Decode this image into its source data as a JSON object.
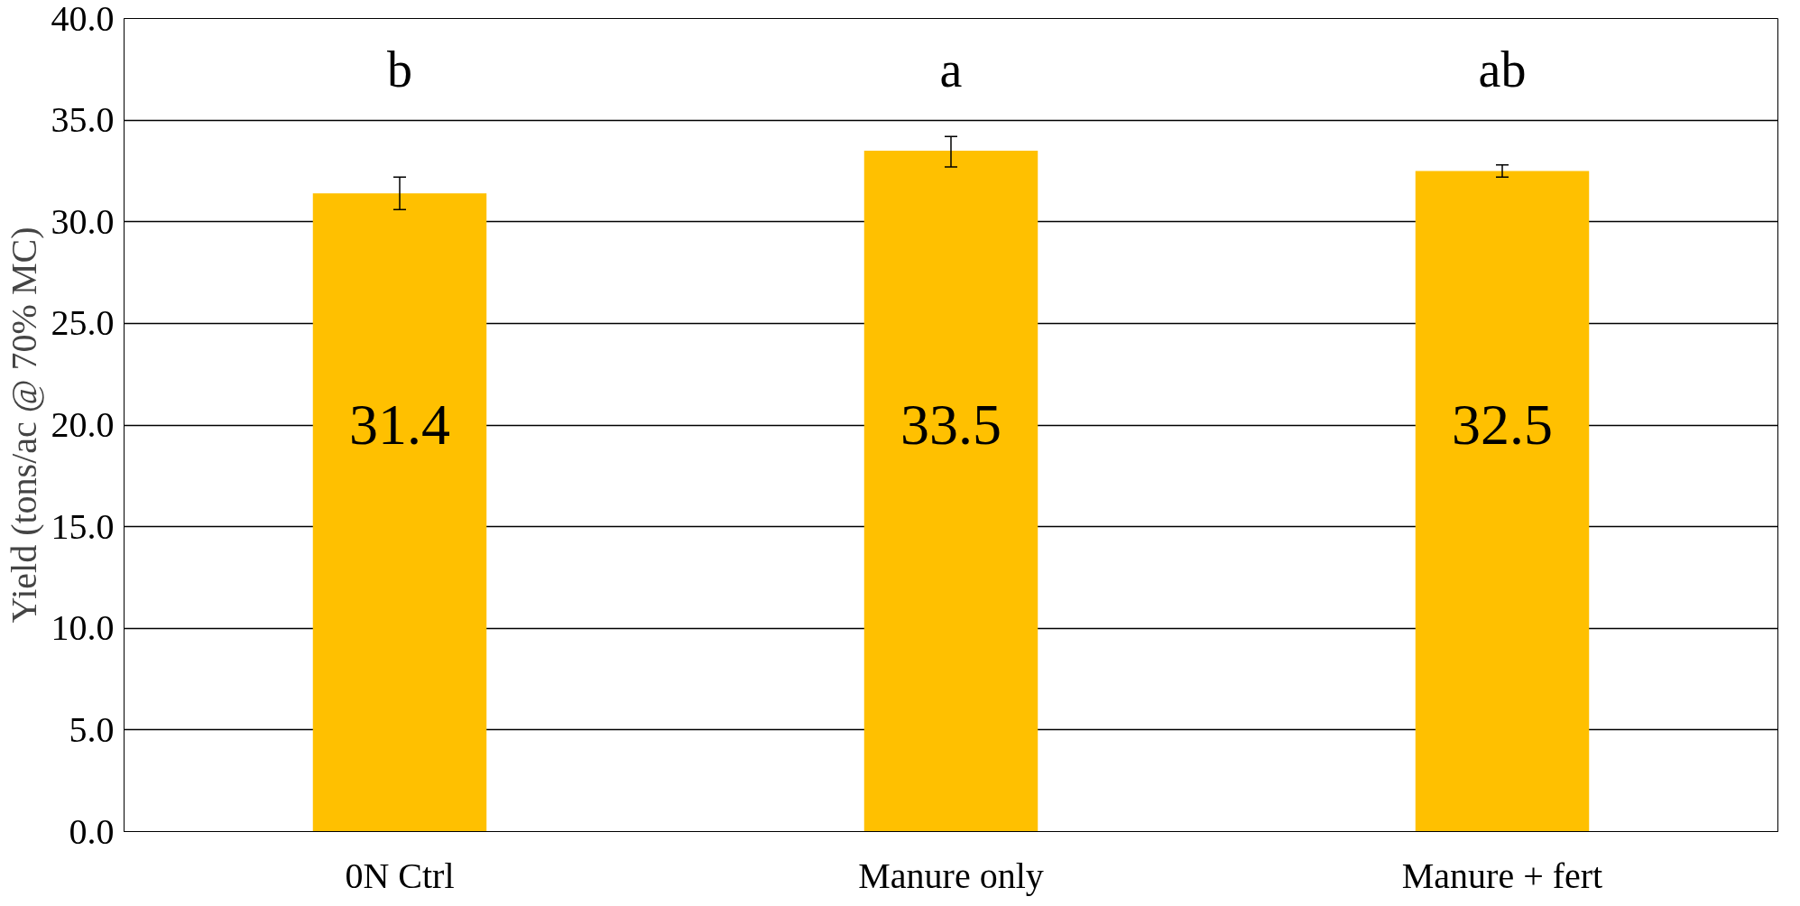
{
  "chart_data": {
    "type": "bar",
    "ylabel": "Yield (tons/ac @ 70% MC)",
    "categories": [
      "0N Ctrl",
      "Manure only",
      "Manure + fert"
    ],
    "values": [
      31.4,
      33.5,
      32.5
    ],
    "color": "#ffc000",
    "errors": [
      [
        30.6,
        32.2
      ],
      [
        32.7,
        34.2
      ],
      [
        32.2,
        32.8
      ]
    ],
    "data_labels": true,
    "ylim": [
      0,
      40
    ],
    "yticks": [
      {
        "value": 0,
        "label": "0.0"
      },
      {
        "value": 5,
        "label": "5.0"
      },
      {
        "value": 10,
        "label": "10.0"
      },
      {
        "value": 15,
        "label": "15.0"
      },
      {
        "value": 20,
        "label": "20.0"
      },
      {
        "value": 25,
        "label": "25.0"
      },
      {
        "value": 30,
        "label": "30.0"
      },
      {
        "value": 35,
        "label": "35.0"
      },
      {
        "value": 40,
        "label": "40.0"
      }
    ],
    "grid": "y",
    "annotations": [
      "b",
      "a",
      "ab"
    ]
  }
}
